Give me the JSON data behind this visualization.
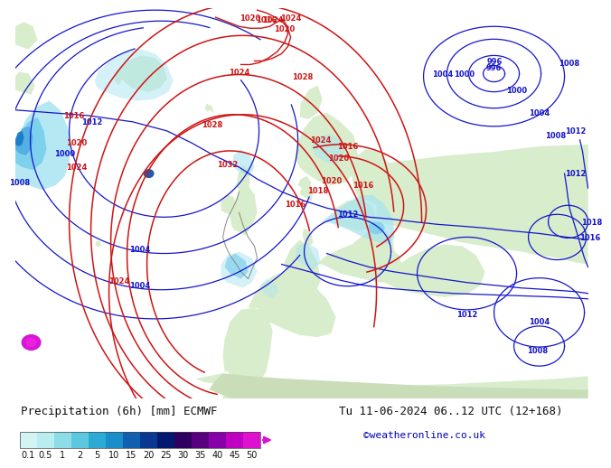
{
  "title_left": "Precipitation (6h) [mm] ECMWF",
  "title_right": "Tu 11-06-2024 06..12 UTC (12+168)",
  "credit": "©weatheronline.co.uk",
  "colorbar_values": [
    "0.1",
    "0.5",
    "1",
    "2",
    "5",
    "10",
    "15",
    "20",
    "25",
    "30",
    "35",
    "40",
    "45",
    "50"
  ],
  "colorbar_colors": [
    "#d4f4f4",
    "#b8eef0",
    "#8cdde8",
    "#5cc8e0",
    "#2aaad4",
    "#1a8ec8",
    "#1060b0",
    "#083890",
    "#041870",
    "#300060",
    "#580080",
    "#8800a8",
    "#c000c0",
    "#e010d0"
  ],
  "bg_color": "#ffffff",
  "label_color": "#101010",
  "title_fontsize": 9,
  "credit_color": "#0000bb",
  "credit_fontsize": 8,
  "tick_fontsize": 7,
  "map_sea_color": "#d0ecf4",
  "map_land_light": "#d8edcc",
  "map_land_dark": "#c8e4b8",
  "map_ocean_deep": "#e8f6fc",
  "precip_cyan_light": "#a8e4f0",
  "precip_cyan_mid": "#70ccec",
  "precip_blue_light": "#4aa8e0",
  "precip_blue_mid": "#1878c8",
  "precip_blue_dark": "#0848a0",
  "precip_navy": "#042878",
  "precip_purple": "#8800b0",
  "precip_magenta": "#d000d0"
}
